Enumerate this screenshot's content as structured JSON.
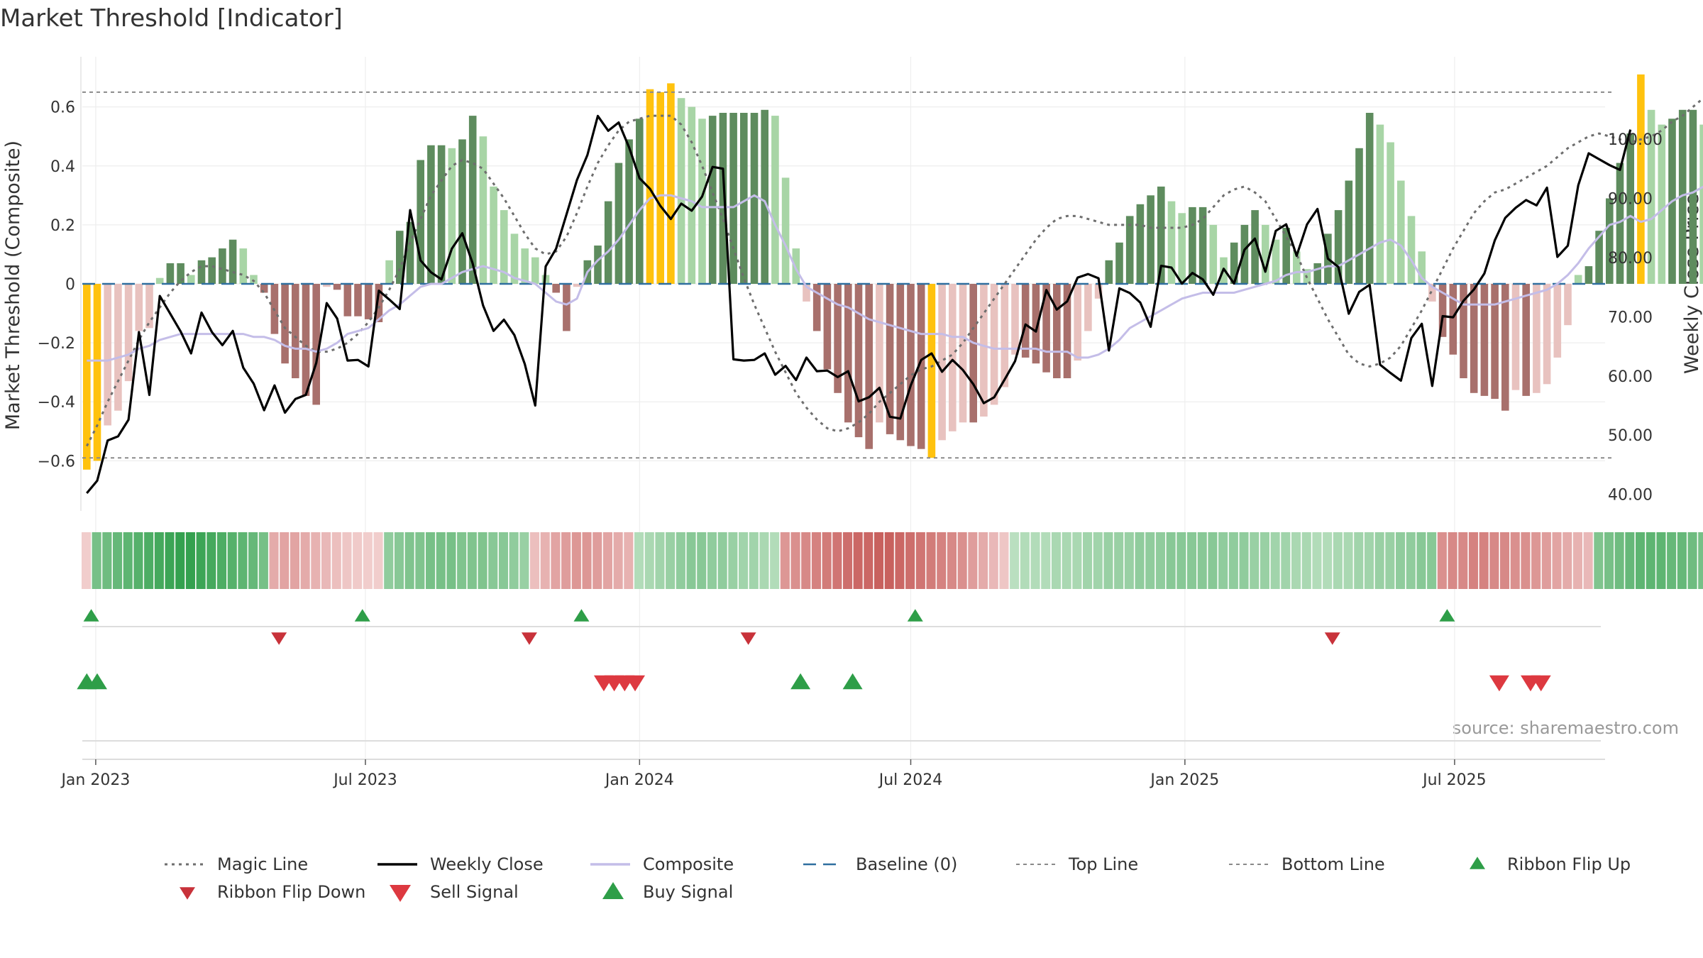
{
  "page": {
    "title": "Market Threshold [Indicator]",
    "y_left_label": "Market Threshold (Composite)",
    "y_right_label": "Weekly Close Price",
    "source": "source: sharemaestro.com"
  },
  "colors": {
    "bar_pos_strong": "#5e8c5e",
    "bar_pos_weak": "#a8d5a6",
    "bar_neg_strong": "#a8706c",
    "bar_neg_weak": "#e8c2bf",
    "bar_extreme": "#ffc20e",
    "weekly_close": "#000000",
    "composite": "#c4bde8",
    "magic_line": "#6e6e6e",
    "baseline": "#2f6f9f",
    "threshold_line": "#8a8a8a",
    "buy": "#2e9e48",
    "sell": "#dd3940"
  },
  "chart_data": {
    "type": "bar",
    "x_start": "2022-12-26",
    "x_step_days": 7,
    "x_ticks": [
      "Jan 2023",
      "Jul 2023",
      "Jan 2024",
      "Jul 2024",
      "Jan 2025",
      "Jul 2025"
    ],
    "x_tick_dates": [
      "2023-01-01",
      "2023-07-01",
      "2024-01-01",
      "2024-07-01",
      "2025-01-01",
      "2025-07-01"
    ],
    "x_range": [
      "2022-12-23",
      "2025-10-10"
    ],
    "ylim_left": [
      -0.77,
      0.77
    ],
    "yticks_left": [
      "0.6",
      "0.4",
      "0.2",
      "0",
      "−0.2",
      "−0.4",
      "−0.6"
    ],
    "ytick_values_left": [
      0.6,
      0.4,
      0.2,
      0,
      -0.2,
      -0.4,
      -0.6
    ],
    "ylim_right": [
      37.2,
      113.9
    ],
    "yticks_right": [
      "100.00",
      "90.00",
      "80.00",
      "70.00",
      "60.00",
      "50.00",
      "40.00"
    ],
    "ytick_values_right": [
      100,
      90,
      80,
      70,
      60,
      50,
      40
    ],
    "top_line": 0.65,
    "bottom_line": -0.59,
    "composite_bars": [
      -0.63,
      -0.6,
      -0.48,
      -0.43,
      -0.33,
      -0.16,
      -0.15,
      0.02,
      0.07,
      0.07,
      0.03,
      0.08,
      0.09,
      0.12,
      0.15,
      0.12,
      0.03,
      -0.03,
      -0.17,
      -0.27,
      -0.32,
      -0.38,
      -0.41,
      -0.01,
      -0.02,
      -0.11,
      -0.11,
      -0.12,
      -0.13,
      0.08,
      0.18,
      0.21,
      0.42,
      0.47,
      0.47,
      0.46,
      0.49,
      0.57,
      0.5,
      0.33,
      0.25,
      0.17,
      0.12,
      0.09,
      0.03,
      -0.03,
      -0.16,
      -0.01,
      0.08,
      0.13,
      0.28,
      0.41,
      0.49,
      0.56,
      0.66,
      0.65,
      0.68,
      0.63,
      0.6,
      0.56,
      0.57,
      0.58,
      0.58,
      0.58,
      0.58,
      0.59,
      0.57,
      0.36,
      0.12,
      -0.06,
      -0.16,
      -0.29,
      -0.37,
      -0.47,
      -0.52,
      -0.56,
      -0.47,
      -0.51,
      -0.53,
      -0.55,
      -0.56,
      -0.59,
      -0.53,
      -0.5,
      -0.47,
      -0.47,
      -0.45,
      -0.41,
      -0.35,
      -0.24,
      -0.25,
      -0.27,
      -0.3,
      -0.32,
      -0.32,
      -0.26,
      -0.16,
      -0.05,
      0.08,
      0.14,
      0.23,
      0.27,
      0.3,
      0.33,
      0.28,
      0.24,
      0.26,
      0.26,
      0.2,
      0.09,
      0.14,
      0.2,
      0.25,
      0.2,
      0.15,
      0.19,
      0.11,
      0.05,
      0.07,
      0.17,
      0.25,
      0.35,
      0.46,
      0.58,
      0.54,
      0.48,
      0.35,
      0.23,
      0.11,
      -0.06,
      -0.18,
      -0.24,
      -0.32,
      -0.37,
      -0.38,
      -0.39,
      -0.43,
      -0.36,
      -0.38,
      -0.37,
      -0.34,
      -0.25,
      -0.14,
      0.03,
      0.06,
      0.18,
      0.29,
      0.41,
      0.51,
      0.71,
      0.59,
      0.54,
      0.56,
      0.59,
      0.59,
      0.54,
      0.6,
      0.53,
      0.6
    ],
    "weekly_close": [
      40.2,
      42.3,
      49.1,
      49.8,
      52.6,
      67.4,
      56.8,
      73.5,
      70.5,
      67.5,
      63.8,
      70.7,
      67.4,
      65.2,
      67.6,
      61.4,
      58.7,
      54.2,
      58.4,
      53.8,
      56.1,
      56.8,
      62.2,
      72.3,
      69.7,
      62.6,
      62.7,
      61.6,
      74.4,
      72.9,
      71.3,
      88.0,
      79.5,
      77.5,
      76.3,
      81.5,
      84.1,
      79.0,
      71.9,
      67.6,
      69.5,
      66.9,
      62.0,
      55.0,
      78.5,
      81.5,
      87.3,
      93.1,
      97.3,
      103.9,
      101.4,
      102.8,
      98.6,
      93.4,
      91.6,
      88.7,
      86.5,
      89.1,
      87.9,
      90.3,
      95.3,
      95.0,
      62.8,
      62.6,
      62.7,
      63.8,
      60.2,
      61.7,
      59.3,
      63.1,
      60.8,
      60.9,
      59.8,
      60.8,
      55.7,
      56.4,
      58.0,
      53.1,
      52.8,
      58.4,
      62.7,
      63.8,
      60.7,
      62.7,
      61.0,
      58.6,
      55.4,
      56.4,
      59.4,
      62.5,
      68.7,
      67.5,
      74.5,
      71.2,
      72.6,
      76.6,
      77.2,
      76.5,
      64.3,
      74.8,
      74.0,
      72.4,
      68.3,
      78.6,
      78.3,
      75.6,
      77.4,
      76.3,
      73.7,
      78.1,
      75.6,
      81.3,
      83.2,
      77.6,
      84.5,
      85.6,
      80.3,
      85.6,
      88.2,
      79.8,
      78.4,
      70.5,
      74.2,
      75.4,
      61.9,
      60.5,
      59.2,
      66.4,
      68.8,
      58.3,
      70.1,
      69.9,
      72.7,
      74.6,
      77.3,
      82.9,
      86.7,
      88.4,
      89.7,
      88.8,
      91.8,
      80.1,
      82.0,
      92.2,
      97.6,
      96.6,
      95.6,
      94.8,
      101.6
    ],
    "composite_line": [
      -0.26,
      -0.26,
      -0.26,
      -0.25,
      -0.24,
      -0.22,
      -0.21,
      -0.19,
      -0.18,
      -0.17,
      -0.17,
      -0.17,
      -0.17,
      -0.17,
      -0.17,
      -0.17,
      -0.18,
      -0.18,
      -0.19,
      -0.21,
      -0.22,
      -0.22,
      -0.23,
      -0.22,
      -0.2,
      -0.17,
      -0.16,
      -0.15,
      -0.12,
      -0.09,
      -0.07,
      -0.04,
      -0.01,
      0.0,
      0.0,
      0.02,
      0.04,
      0.05,
      0.06,
      0.05,
      0.04,
      0.02,
      0.01,
      0.0,
      -0.03,
      -0.06,
      -0.07,
      -0.05,
      0.04,
      0.08,
      0.11,
      0.15,
      0.2,
      0.25,
      0.29,
      0.3,
      0.3,
      0.29,
      0.28,
      0.26,
      0.26,
      0.26,
      0.26,
      0.28,
      0.3,
      0.28,
      0.2,
      0.13,
      0.05,
      -0.01,
      -0.03,
      -0.05,
      -0.07,
      -0.08,
      -0.1,
      -0.12,
      -0.13,
      -0.14,
      -0.15,
      -0.16,
      -0.17,
      -0.17,
      -0.17,
      -0.18,
      -0.18,
      -0.2,
      -0.21,
      -0.22,
      -0.22,
      -0.22,
      -0.22,
      -0.22,
      -0.23,
      -0.23,
      -0.23,
      -0.25,
      -0.25,
      -0.24,
      -0.22,
      -0.19,
      -0.15,
      -0.13,
      -0.11,
      -0.09,
      -0.07,
      -0.05,
      -0.04,
      -0.03,
      -0.03,
      -0.03,
      -0.03,
      -0.02,
      -0.01,
      0.0,
      0.01,
      0.03,
      0.04,
      0.04,
      0.05,
      0.06,
      0.06,
      0.08,
      0.1,
      0.12,
      0.14,
      0.15,
      0.13,
      0.08,
      0.02,
      -0.01,
      -0.03,
      -0.05,
      -0.07,
      -0.07,
      -0.07,
      -0.07,
      -0.06,
      -0.05,
      -0.04,
      -0.03,
      -0.02,
      0.0,
      0.03,
      0.07,
      0.12,
      0.16,
      0.2,
      0.21,
      0.23,
      0.21,
      0.22,
      0.25,
      0.28,
      0.3,
      0.31,
      0.33
    ],
    "magic_line": [
      -0.55,
      -0.48,
      -0.4,
      -0.33,
      -0.26,
      -0.19,
      -0.13,
      -0.08,
      -0.03,
      0.01,
      0.04,
      0.06,
      0.06,
      0.05,
      0.04,
      0.03,
      0.01,
      -0.03,
      -0.09,
      -0.15,
      -0.18,
      -0.21,
      -0.23,
      -0.23,
      -0.22,
      -0.2,
      -0.17,
      -0.13,
      -0.08,
      -0.02,
      0.05,
      0.14,
      0.22,
      0.3,
      0.35,
      0.4,
      0.42,
      0.41,
      0.39,
      0.34,
      0.29,
      0.23,
      0.17,
      0.12,
      0.1,
      0.11,
      0.16,
      0.24,
      0.33,
      0.41,
      0.47,
      0.52,
      0.55,
      0.56,
      0.57,
      0.57,
      0.57,
      0.54,
      0.48,
      0.4,
      0.31,
      0.22,
      0.12,
      0.02,
      -0.07,
      -0.15,
      -0.23,
      -0.3,
      -0.37,
      -0.42,
      -0.46,
      -0.49,
      -0.5,
      -0.49,
      -0.47,
      -0.44,
      -0.4,
      -0.37,
      -0.34,
      -0.31,
      -0.29,
      -0.28,
      -0.26,
      -0.24,
      -0.2,
      -0.15,
      -0.1,
      -0.05,
      0.0,
      0.05,
      0.1,
      0.15,
      0.19,
      0.22,
      0.23,
      0.23,
      0.22,
      0.21,
      0.2,
      0.2,
      0.2,
      0.2,
      0.19,
      0.19,
      0.19,
      0.19,
      0.2,
      0.22,
      0.26,
      0.3,
      0.32,
      0.33,
      0.31,
      0.28,
      0.22,
      0.16,
      0.1,
      0.02,
      -0.05,
      -0.12,
      -0.18,
      -0.24,
      -0.27,
      -0.28,
      -0.27,
      -0.25,
      -0.21,
      -0.15,
      -0.09,
      -0.02,
      0.05,
      0.12,
      0.18,
      0.24,
      0.28,
      0.31,
      0.32,
      0.34,
      0.36,
      0.38,
      0.4,
      0.43,
      0.46,
      0.48,
      0.5,
      0.51,
      0.5,
      0.49,
      0.48,
      0.49,
      0.5,
      0.52,
      0.55,
      0.57,
      0.6,
      0.63,
      0.64,
      0.64
    ],
    "ribbon_scores": [
      -0.1,
      0.6,
      0.65,
      0.7,
      0.75,
      0.8,
      0.85,
      0.9,
      0.95,
      1.0,
      1.0,
      0.95,
      0.9,
      0.85,
      0.8,
      0.75,
      0.7,
      0.6,
      -0.35,
      -0.4,
      -0.4,
      -0.35,
      -0.3,
      -0.25,
      -0.2,
      -0.15,
      -0.12,
      -0.1,
      -0.1,
      0.45,
      0.5,
      0.55,
      0.55,
      0.6,
      0.6,
      0.6,
      0.55,
      0.55,
      0.55,
      0.5,
      0.5,
      0.45,
      0.4,
      -0.2,
      -0.3,
      -0.4,
      -0.45,
      -0.5,
      -0.5,
      -0.45,
      -0.4,
      -0.35,
      -0.3,
      0.25,
      0.3,
      0.35,
      0.4,
      0.45,
      0.5,
      0.5,
      0.45,
      0.45,
      0.4,
      0.35,
      0.35,
      0.3,
      0.25,
      -0.5,
      -0.55,
      -0.6,
      -0.65,
      -0.7,
      -0.75,
      -0.8,
      -0.85,
      -0.85,
      -0.9,
      -0.9,
      -0.85,
      -0.8,
      -0.75,
      -0.7,
      -0.65,
      -0.6,
      -0.55,
      -0.45,
      -0.35,
      -0.25,
      -0.15,
      0.2,
      0.25,
      0.25,
      0.25,
      0.3,
      0.3,
      0.3,
      0.35,
      0.35,
      0.4,
      0.4,
      0.4,
      0.45,
      0.45,
      0.45,
      0.5,
      0.5,
      0.5,
      0.5,
      0.5,
      0.45,
      0.45,
      0.45,
      0.4,
      0.4,
      0.35,
      0.35,
      0.3,
      0.3,
      0.25,
      0.25,
      0.3,
      0.3,
      0.35,
      0.35,
      0.4,
      0.4,
      0.45,
      0.45,
      0.5,
      0.5,
      -0.55,
      -0.6,
      -0.6,
      -0.65,
      -0.65,
      -0.6,
      -0.6,
      -0.55,
      -0.55,
      -0.5,
      -0.45,
      -0.4,
      -0.35,
      -0.3,
      -0.25,
      0.55,
      0.6,
      0.65,
      0.7,
      0.75,
      0.75,
      0.75,
      0.7,
      0.7,
      0.65,
      0.6,
      0.55,
      0.5,
      0.45,
      0.45,
      0.45
    ],
    "ribbon_flip_up": [
      "2022-12-29",
      "2023-06-29",
      "2023-11-23",
      "2024-07-04",
      "2025-06-26"
    ],
    "ribbon_flip_down": [
      "2023-05-04",
      "2023-10-19",
      "2024-03-14",
      "2025-04-10"
    ],
    "buy_signals": [
      "2022-12-26",
      "2023-01-02",
      "2024-04-18",
      "2024-05-23"
    ],
    "sell_signals": [
      "2023-12-08",
      "2023-12-15",
      "2023-12-22",
      "2023-12-29",
      "2025-07-31",
      "2025-08-21",
      "2025-08-28"
    ],
    "legend": [
      {
        "label": "Magic Line",
        "kind": "dotted",
        "color": "#6e6e6e"
      },
      {
        "label": "Weekly Close",
        "kind": "solid",
        "color": "#000000"
      },
      {
        "label": "Composite",
        "kind": "solid",
        "color": "#c4bde8"
      },
      {
        "label": "Baseline (0)",
        "kind": "dashed",
        "color": "#2f6f9f"
      },
      {
        "label": "Top Line",
        "kind": "dashedthin",
        "color": "#8a8a8a"
      },
      {
        "label": "Bottom Line",
        "kind": "dashedthin",
        "color": "#8a8a8a"
      },
      {
        "label": "Ribbon Flip Up",
        "kind": "tri-up-small",
        "color": "#2e9e48"
      },
      {
        "label": "Ribbon Flip Down",
        "kind": "tri-down-small",
        "color": "#c8323a"
      },
      {
        "label": "Sell Signal",
        "kind": "tri-down",
        "color": "#dd3940"
      },
      {
        "label": "Buy Signal",
        "kind": "tri-up",
        "color": "#2e9e48"
      }
    ]
  }
}
